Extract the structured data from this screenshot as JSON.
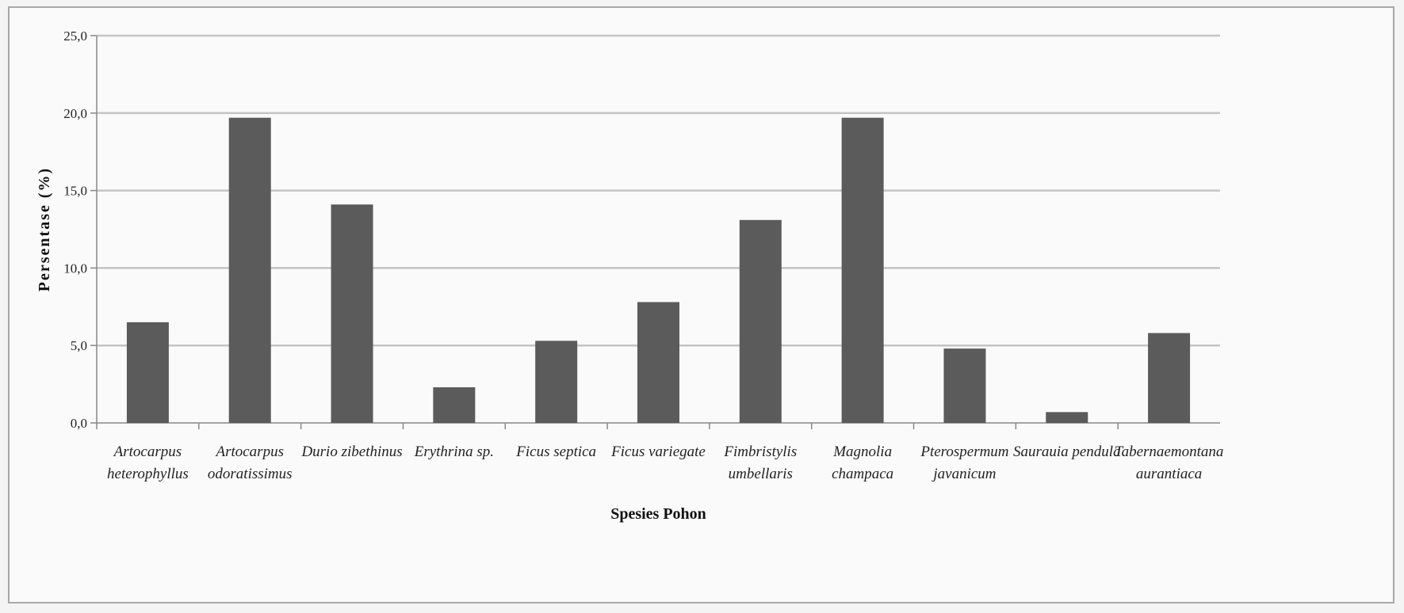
{
  "chart_data": {
    "type": "bar",
    "title": "",
    "xlabel": "Spesies Pohon",
    "ylabel": "Persentase (%)",
    "ylim": [
      0,
      25
    ],
    "yticks": [
      "0,0",
      "5,0",
      "10,0",
      "15,0",
      "20,0",
      "25,0"
    ],
    "grid": true,
    "legend": "none",
    "bar_color": "#5b5b5b",
    "categories": [
      [
        "Artocarpus",
        "heterophyllus"
      ],
      [
        "Artocarpus",
        "odoratissimus"
      ],
      [
        "Durio zibethinus"
      ],
      [
        "Erythrina sp."
      ],
      [
        "Ficus septica"
      ],
      [
        "Ficus variegate"
      ],
      [
        "Fimbristylis",
        "umbellaris"
      ],
      [
        "Magnolia",
        "champaca"
      ],
      [
        "Pterospermum",
        "javanicum"
      ],
      [
        "Saurauia pendula"
      ],
      [
        "Tabernaemontana",
        "aurantiaca"
      ]
    ],
    "values": [
      6.5,
      19.7,
      14.1,
      2.3,
      5.3,
      7.8,
      13.1,
      19.7,
      4.8,
      0.7,
      5.8
    ]
  }
}
